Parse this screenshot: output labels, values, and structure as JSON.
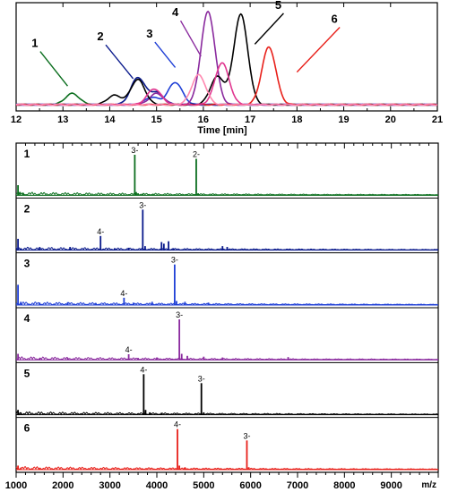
{
  "chart_data": [
    {
      "type": "line",
      "title": "",
      "xlabel": "Time [min]",
      "ylabel": "",
      "xlim": [
        12,
        21
      ],
      "x_ticks": [
        "12",
        "13",
        "14",
        "15",
        "16",
        "17",
        "18",
        "19",
        "20",
        "21"
      ],
      "series": [
        {
          "color": "#0b6e1e",
          "peaks": [
            {
              "x": 13.2,
              "y": 0.12
            }
          ]
        },
        {
          "color": "#0a1a8c",
          "peaks": [
            {
              "x": 14.6,
              "y": 0.29
            },
            {
              "x": 15.0,
              "y": 0.13
            }
          ]
        },
        {
          "color": "#1f3fd6",
          "peaks": [
            {
              "x": 15.4,
              "y": 0.24
            },
            {
              "x": 14.9,
              "y": 0.08
            }
          ]
        },
        {
          "color": "#8a2a9e",
          "peaks": [
            {
              "x": 16.1,
              "y": 1.0
            },
            {
              "x": 15.0,
              "y": 0.12
            }
          ]
        },
        {
          "color": "#000000",
          "peaks": [
            {
              "x": 16.8,
              "y": 0.97
            },
            {
              "x": 14.6,
              "y": 0.27
            },
            {
              "x": 14.1,
              "y": 0.1
            },
            {
              "x": 16.3,
              "y": 0.3
            }
          ]
        },
        {
          "color": "#e8201a",
          "peaks": [
            {
              "x": 17.4,
              "y": 0.62
            }
          ]
        },
        {
          "color": "#e0358f",
          "peaks": [
            {
              "x": 16.4,
              "y": 0.45
            },
            {
              "x": 14.95,
              "y": 0.17
            }
          ]
        },
        {
          "color": "#ff88b0",
          "peaks": [
            {
              "x": 15.9,
              "y": 0.32
            }
          ]
        }
      ],
      "annotations": [
        {
          "label": "1",
          "color": "#0b6e1e",
          "label_at": [
            12.4,
            0.62
          ],
          "arrow_to": [
            13.1,
            0.2
          ]
        },
        {
          "label": "2",
          "color": "#0a1a8c",
          "label_at": [
            13.8,
            0.69
          ],
          "arrow_to": [
            14.5,
            0.28
          ]
        },
        {
          "label": "3",
          "color": "#1f3fd6",
          "label_at": [
            14.85,
            0.72
          ],
          "arrow_to": [
            15.4,
            0.4
          ]
        },
        {
          "label": "4",
          "color": "#8a2a9e",
          "label_at": [
            15.4,
            0.95
          ],
          "arrow_to": [
            15.95,
            0.52
          ]
        },
        {
          "label": "5",
          "color": "#000000",
          "label_at": [
            17.6,
            1.03
          ],
          "arrow_to": [
            17.1,
            0.65
          ]
        },
        {
          "label": "6",
          "color": "#e8201a",
          "label_at": [
            18.8,
            0.88
          ],
          "arrow_to": [
            18.0,
            0.35
          ]
        }
      ]
    },
    {
      "type": "bar",
      "title": "",
      "xlabel": "m/z",
      "ylabel": "",
      "xlim": [
        1000,
        10000
      ],
      "x_ticks": [
        "1000",
        "2000",
        "3000",
        "4000",
        "5000",
        "6000",
        "7000",
        "8000",
        "9000"
      ],
      "panels": [
        {
          "label": "1",
          "color": "#0b6e1e",
          "peaks": [
            [
              1040,
              0.25
            ],
            [
              1080,
              0.06
            ],
            [
              1150,
              0.05
            ],
            [
              3530,
              1.0
            ],
            [
              3560,
              0.08
            ],
            [
              3600,
              0.05
            ],
            [
              3700,
              0.04
            ],
            [
              3900,
              0.03
            ],
            [
              4840,
              0.9
            ],
            [
              4880,
              0.05
            ]
          ],
          "peak_labels": [
            {
              "x": 3530,
              "y": 1.0,
              "text": "3-"
            },
            {
              "x": 4840,
              "y": 0.9,
              "text": "2-"
            }
          ]
        },
        {
          "label": "2",
          "color": "#0a1a8c",
          "peaks": [
            [
              1040,
              0.28
            ],
            [
              1100,
              0.05
            ],
            [
              1500,
              0.05
            ],
            [
              2150,
              0.08
            ],
            [
              2800,
              0.35
            ],
            [
              3100,
              0.05
            ],
            [
              3400,
              0.06
            ],
            [
              3700,
              1.0
            ],
            [
              3750,
              0.1
            ],
            [
              4100,
              0.2
            ],
            [
              4150,
              0.16
            ],
            [
              4250,
              0.22
            ],
            [
              4350,
              0.05
            ],
            [
              5400,
              0.1
            ],
            [
              5500,
              0.08
            ]
          ],
          "peak_labels": [
            {
              "x": 2800,
              "y": 0.35,
              "text": "4-"
            },
            {
              "x": 3700,
              "y": 1.0,
              "text": "3-"
            }
          ]
        },
        {
          "label": "3",
          "color": "#1f3fd6",
          "peaks": [
            [
              1040,
              0.5
            ],
            [
              1100,
              0.08
            ],
            [
              1500,
              0.06
            ],
            [
              2100,
              0.07
            ],
            [
              2700,
              0.05
            ],
            [
              3300,
              0.18
            ],
            [
              3500,
              0.06
            ],
            [
              3900,
              0.08
            ],
            [
              4380,
              1.0
            ],
            [
              4420,
              0.1
            ],
            [
              4600,
              0.08
            ],
            [
              5100,
              0.06
            ]
          ],
          "peak_labels": [
            {
              "x": 3300,
              "y": 0.18,
              "text": "4-"
            },
            {
              "x": 4380,
              "y": 1.0,
              "text": "3-"
            }
          ]
        },
        {
          "label": "4",
          "color": "#8a2a9e",
          "peaks": [
            [
              1040,
              0.15
            ],
            [
              1500,
              0.04
            ],
            [
              2100,
              0.05
            ],
            [
              3400,
              0.14
            ],
            [
              3600,
              0.05
            ],
            [
              4000,
              0.06
            ],
            [
              4480,
              1.0
            ],
            [
              4530,
              0.15
            ],
            [
              4650,
              0.1
            ],
            [
              5000,
              0.08
            ],
            [
              5400,
              0.06
            ],
            [
              6800,
              0.07
            ]
          ],
          "peak_labels": [
            {
              "x": 3400,
              "y": 0.14,
              "text": "4-"
            },
            {
              "x": 4480,
              "y": 1.0,
              "text": "3-"
            }
          ]
        },
        {
          "label": "5",
          "color": "#000000",
          "peaks": [
            [
              1040,
              0.12
            ],
            [
              1100,
              0.06
            ],
            [
              3720,
              1.0
            ],
            [
              3760,
              0.12
            ],
            [
              3850,
              0.06
            ],
            [
              4100,
              0.05
            ],
            [
              4950,
              0.78
            ],
            [
              5000,
              0.06
            ]
          ],
          "peak_labels": [
            {
              "x": 3720,
              "y": 1.0,
              "text": "4-"
            },
            {
              "x": 4950,
              "y": 0.78,
              "text": "3-"
            }
          ]
        },
        {
          "label": "6",
          "color": "#e8201a",
          "peaks": [
            [
              1040,
              0.1
            ],
            [
              1100,
              0.05
            ],
            [
              1500,
              0.03
            ],
            [
              4440,
              1.0
            ],
            [
              4480,
              0.1
            ],
            [
              4600,
              0.06
            ],
            [
              5920,
              0.72
            ],
            [
              5960,
              0.06
            ]
          ],
          "peak_labels": [
            {
              "x": 4440,
              "y": 1.0,
              "text": "4-"
            },
            {
              "x": 5920,
              "y": 0.72,
              "text": "3-"
            }
          ]
        }
      ]
    }
  ]
}
